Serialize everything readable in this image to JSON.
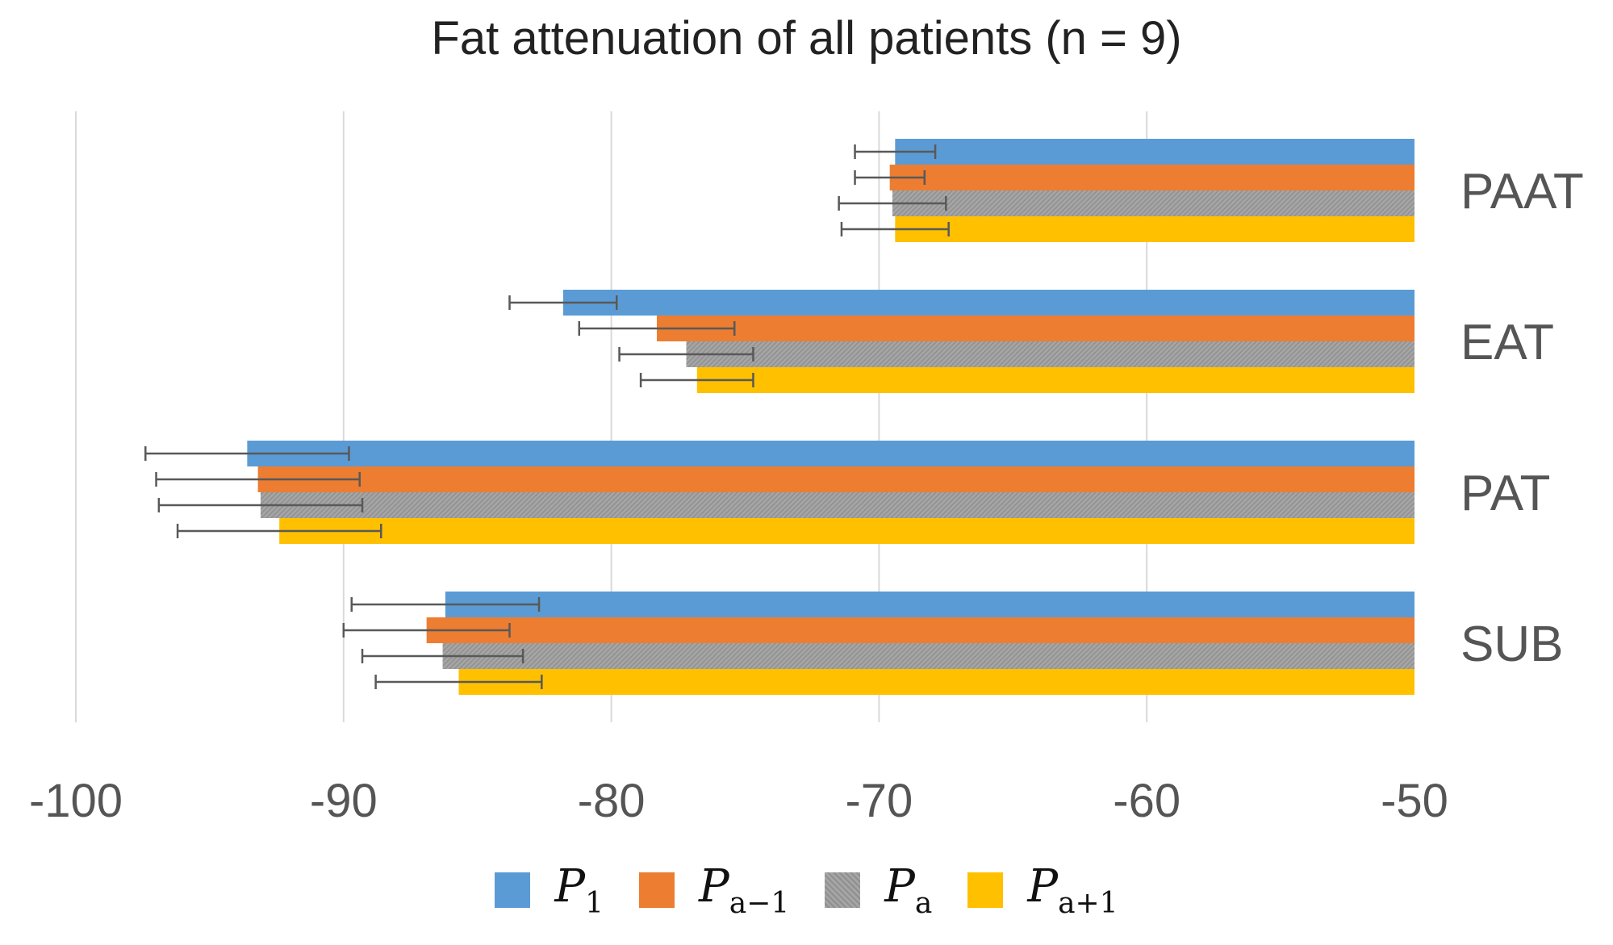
{
  "chart_data": {
    "type": "bar",
    "orientation": "horizontal",
    "title": "Fat attenuation of all patients (n = 9)",
    "xlabel": "",
    "ylabel": "",
    "xlim": [
      -100,
      -50
    ],
    "x_ticks": [
      -100,
      -90,
      -80,
      -70,
      -60,
      -50
    ],
    "tick_labels": [
      "-100",
      "-90",
      "-80",
      "-70",
      "-60",
      "-50"
    ],
    "grid": true,
    "legend_position": "bottom",
    "categories": [
      "PAAT",
      "EAT",
      "PAT",
      "SUB"
    ],
    "series": [
      {
        "name": "P1",
        "base": "P",
        "sub": "1",
        "color": "#5B9BD5",
        "values": [
          -69.4,
          -81.8,
          -93.6,
          -86.2
        ],
        "errors": [
          1.5,
          2.0,
          3.8,
          3.5
        ]
      },
      {
        "name": "Pa-1",
        "base": "P",
        "sub": "a−1",
        "color": "#ED7D31",
        "values": [
          -69.6,
          -78.3,
          -93.2,
          -86.9
        ],
        "errors": [
          1.3,
          2.9,
          3.8,
          3.1
        ]
      },
      {
        "name": "Pa",
        "base": "P",
        "sub": "a",
        "color": "#A5A5A5",
        "hatched": true,
        "values": [
          -69.5,
          -77.2,
          -93.1,
          -86.3
        ],
        "errors": [
          2.0,
          2.5,
          3.8,
          3.0
        ]
      },
      {
        "name": "Pa+1",
        "base": "P",
        "sub": "a+1",
        "color": "#FFC000",
        "values": [
          -69.4,
          -76.8,
          -92.4,
          -85.7
        ],
        "errors": [
          2.0,
          2.1,
          3.8,
          3.1
        ]
      }
    ]
  }
}
